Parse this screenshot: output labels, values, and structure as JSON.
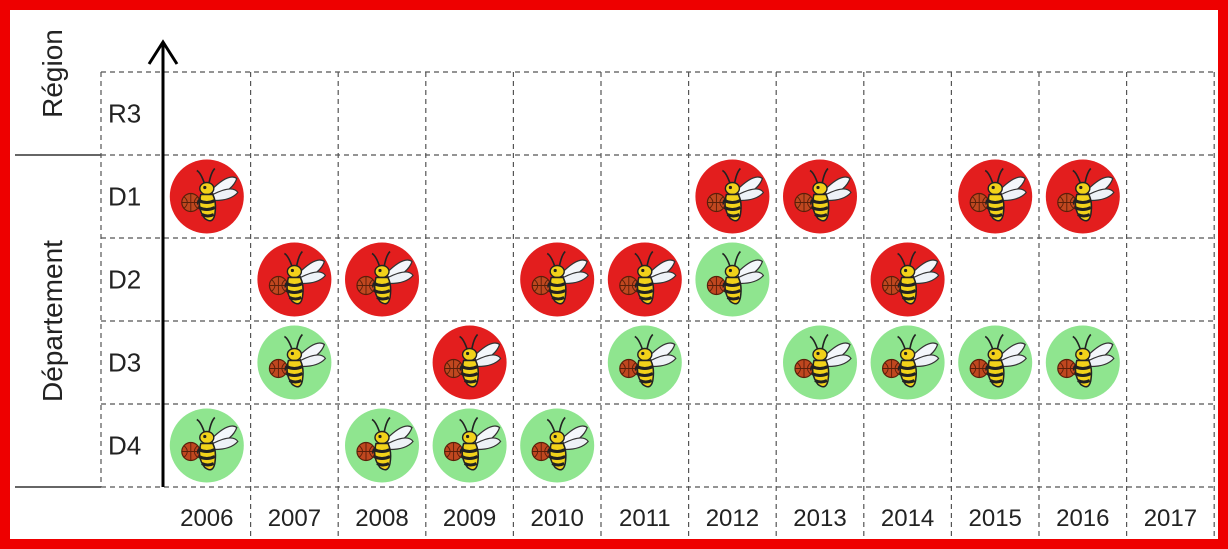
{
  "chart_data": {
    "type": "timeline",
    "groups": [
      {
        "label": "Région",
        "levels": [
          "R3"
        ]
      },
      {
        "label": "Département",
        "levels": [
          "D1",
          "D2",
          "D3",
          "D4"
        ]
      }
    ],
    "levels": [
      "R3",
      "D1",
      "D2",
      "D3",
      "D4"
    ],
    "years": [
      "2006",
      "2007",
      "2008",
      "2009",
      "2010",
      "2011",
      "2012",
      "2013",
      "2014",
      "2015",
      "2016",
      "2017"
    ],
    "legend_colors": {
      "red": "#e31e1e",
      "green": "#8fe58f"
    },
    "marks": [
      {
        "year": "2006",
        "level": "D1",
        "color": "red"
      },
      {
        "year": "2006",
        "level": "D4",
        "color": "green"
      },
      {
        "year": "2007",
        "level": "D2",
        "color": "red"
      },
      {
        "year": "2007",
        "level": "D3",
        "color": "green"
      },
      {
        "year": "2008",
        "level": "D2",
        "color": "red"
      },
      {
        "year": "2008",
        "level": "D4",
        "color": "green"
      },
      {
        "year": "2009",
        "level": "D3",
        "color": "red"
      },
      {
        "year": "2009",
        "level": "D4",
        "color": "green"
      },
      {
        "year": "2010",
        "level": "D2",
        "color": "red"
      },
      {
        "year": "2010",
        "level": "D4",
        "color": "green"
      },
      {
        "year": "2011",
        "level": "D2",
        "color": "red"
      },
      {
        "year": "2011",
        "level": "D3",
        "color": "green"
      },
      {
        "year": "2012",
        "level": "D1",
        "color": "red"
      },
      {
        "year": "2012",
        "level": "D2",
        "color": "green"
      },
      {
        "year": "2013",
        "level": "D1",
        "color": "red"
      },
      {
        "year": "2013",
        "level": "D3",
        "color": "green"
      },
      {
        "year": "2014",
        "level": "D2",
        "color": "red"
      },
      {
        "year": "2014",
        "level": "D3",
        "color": "green"
      },
      {
        "year": "2015",
        "level": "D1",
        "color": "red"
      },
      {
        "year": "2015",
        "level": "D3",
        "color": "green"
      },
      {
        "year": "2016",
        "level": "D1",
        "color": "red"
      },
      {
        "year": "2016",
        "level": "D3",
        "color": "green"
      }
    ],
    "frame_color": "#ee0000"
  }
}
